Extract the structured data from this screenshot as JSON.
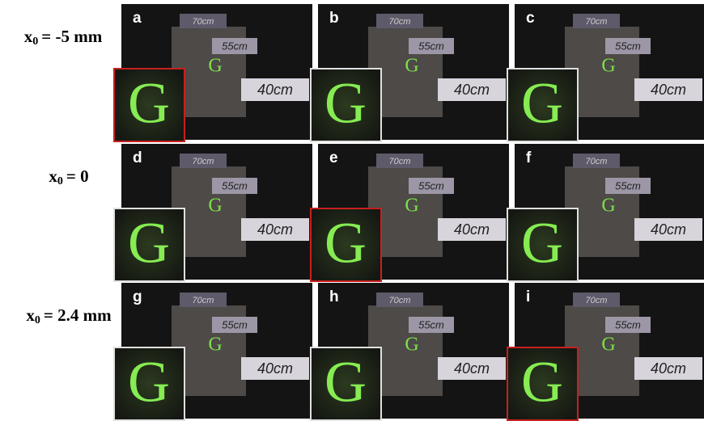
{
  "rows": [
    {
      "label": {
        "var": "x",
        "sub": "0",
        "rest": "= -5 mm"
      },
      "panels": [
        {
          "letter": "a",
          "highlight": true
        },
        {
          "letter": "b",
          "highlight": false
        },
        {
          "letter": "c",
          "highlight": false
        }
      ]
    },
    {
      "label": {
        "var": "x",
        "sub": "0",
        "rest": "= 0"
      },
      "panels": [
        {
          "letter": "d",
          "highlight": false
        },
        {
          "letter": "e",
          "highlight": true
        },
        {
          "letter": "f",
          "highlight": false
        }
      ]
    },
    {
      "label": {
        "var": "x",
        "sub": "0",
        "rest": "= 2.4 mm"
      },
      "panels": [
        {
          "letter": "g",
          "highlight": false
        },
        {
          "letter": "h",
          "highlight": false
        },
        {
          "letter": "i",
          "highlight": true
        }
      ]
    }
  ],
  "scene": {
    "tags": [
      "70cm",
      "55cm",
      "40cm"
    ],
    "glyph": "G"
  }
}
